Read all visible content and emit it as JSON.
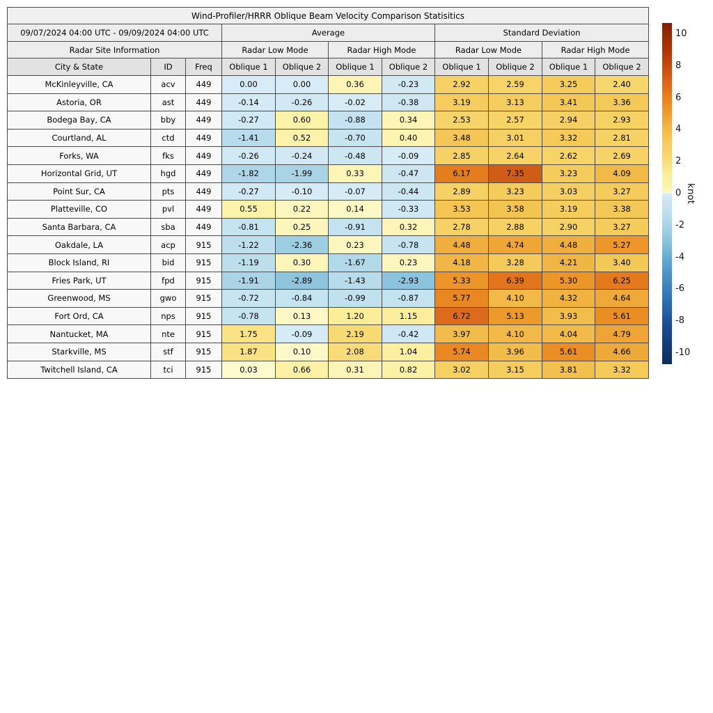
{
  "chart_data": {
    "type": "heatmap-table",
    "title": "Wind-Profiler/HRRR Oblique Beam Velocity Comparison Statisitics",
    "date_range": "09/07/2024 04:00 UTC - 09/09/2024 04:00 UTC",
    "groups": {
      "average": "Average",
      "std": "Standard Deviation"
    },
    "site_info_header": "Radar Site Information",
    "mode_headers": [
      "Radar Low Mode",
      "Radar High Mode",
      "Radar Low Mode",
      "Radar High Mode"
    ],
    "columns": {
      "city": "City & State",
      "id": "ID",
      "freq": "Freq"
    },
    "oblique_headers": [
      "Oblique 1",
      "Oblique 2",
      "Oblique 1",
      "Oblique 2",
      "Oblique 1",
      "Oblique 2",
      "Oblique 1",
      "Oblique 2"
    ],
    "rows": [
      {
        "city": "McKinleyville, CA",
        "id": "acv",
        "freq": "449",
        "values": [
          0.0,
          0.0,
          0.36,
          -0.23,
          2.92,
          2.59,
          3.25,
          2.4
        ]
      },
      {
        "city": "Astoria, OR",
        "id": "ast",
        "freq": "449",
        "values": [
          -0.14,
          -0.26,
          -0.02,
          -0.38,
          3.19,
          3.13,
          3.41,
          3.36
        ]
      },
      {
        "city": "Bodega Bay, CA",
        "id": "bby",
        "freq": "449",
        "values": [
          -0.27,
          0.6,
          -0.88,
          0.34,
          2.53,
          2.57,
          2.94,
          2.93
        ]
      },
      {
        "city": "Courtland, AL",
        "id": "ctd",
        "freq": "449",
        "values": [
          -1.41,
          0.52,
          -0.7,
          0.4,
          3.48,
          3.01,
          3.32,
          2.81
        ]
      },
      {
        "city": "Forks, WA",
        "id": "fks",
        "freq": "449",
        "values": [
          -0.26,
          -0.24,
          -0.48,
          -0.09,
          2.85,
          2.64,
          2.62,
          2.69
        ]
      },
      {
        "city": "Horizontal Grid, UT",
        "id": "hgd",
        "freq": "449",
        "values": [
          -1.82,
          -1.99,
          0.33,
          -0.47,
          6.17,
          7.35,
          3.23,
          4.09
        ]
      },
      {
        "city": "Point Sur, CA",
        "id": "pts",
        "freq": "449",
        "values": [
          -0.27,
          -0.1,
          -0.07,
          -0.44,
          2.89,
          3.23,
          3.03,
          3.27
        ]
      },
      {
        "city": "Platteville, CO",
        "id": "pvl",
        "freq": "449",
        "values": [
          0.55,
          0.22,
          0.14,
          -0.33,
          3.53,
          3.58,
          3.19,
          3.38
        ]
      },
      {
        "city": "Santa Barbara, CA",
        "id": "sba",
        "freq": "449",
        "values": [
          -0.81,
          0.25,
          -0.91,
          0.32,
          2.78,
          2.88,
          2.9,
          3.27
        ]
      },
      {
        "city": "Oakdale, LA",
        "id": "acp",
        "freq": "915",
        "values": [
          -1.22,
          -2.36,
          0.23,
          -0.78,
          4.48,
          4.74,
          4.48,
          5.27
        ]
      },
      {
        "city": "Block Island, RI",
        "id": "bid",
        "freq": "915",
        "values": [
          -1.19,
          0.3,
          -1.67,
          0.23,
          4.18,
          3.28,
          4.21,
          3.4
        ]
      },
      {
        "city": "Fries Park, UT",
        "id": "fpd",
        "freq": "915",
        "values": [
          -1.91,
          -2.89,
          -1.43,
          -2.93,
          5.33,
          6.39,
          5.3,
          6.25
        ]
      },
      {
        "city": "Greenwood, MS",
        "id": "gwo",
        "freq": "915",
        "values": [
          -0.72,
          -0.84,
          -0.99,
          -0.87,
          5.77,
          4.1,
          4.32,
          4.64
        ]
      },
      {
        "city": "Fort Ord, CA",
        "id": "nps",
        "freq": "915",
        "values": [
          -0.78,
          0.13,
          1.2,
          1.15,
          6.72,
          5.13,
          3.93,
          5.61
        ]
      },
      {
        "city": "Nantucket, MA",
        "id": "nte",
        "freq": "915",
        "values": [
          1.75,
          -0.09,
          2.19,
          -0.42,
          3.97,
          4.1,
          4.04,
          4.79
        ]
      },
      {
        "city": "Starkville, MS",
        "id": "stf",
        "freq": "915",
        "values": [
          1.87,
          0.1,
          2.08,
          1.04,
          5.74,
          3.96,
          5.61,
          4.66
        ]
      },
      {
        "city": "Twitchell Island, CA",
        "id": "tci",
        "freq": "915",
        "values": [
          0.03,
          0.66,
          0.31,
          0.82,
          3.02,
          3.15,
          3.81,
          3.32
        ]
      }
    ],
    "colorbar": {
      "label": "knot",
      "unit": "knot",
      "vmin": -10,
      "vmax": 10,
      "edge_max": 10.7,
      "edge_min": -10.7,
      "ticks": [
        10,
        8,
        6,
        4,
        2,
        0,
        -2,
        -4,
        -6,
        -8,
        -10
      ],
      "warm_stops": [
        [
          0,
          "#fdfad0"
        ],
        [
          0.25,
          "#fdf6bc"
        ],
        [
          0.5,
          "#fdf2ab"
        ],
        [
          1,
          "#fdf0a2"
        ],
        [
          1.5,
          "#fbe88f"
        ],
        [
          2,
          "#f9de7c"
        ],
        [
          2.5,
          "#f7d469"
        ],
        [
          3,
          "#f6d063"
        ],
        [
          3.5,
          "#f4c654"
        ],
        [
          4,
          "#f2bb4a"
        ],
        [
          4.5,
          "#f0ad3e"
        ],
        [
          5,
          "#ee9e30"
        ],
        [
          5.5,
          "#eb9026"
        ],
        [
          6,
          "#e8821f"
        ],
        [
          6.5,
          "#e0711b"
        ],
        [
          7,
          "#d8661a"
        ],
        [
          8,
          "#c44a10"
        ],
        [
          9,
          "#ab3507"
        ],
        [
          10,
          "#932b04"
        ],
        [
          10.7,
          "#7c1d03"
        ]
      ],
      "cool_stops": [
        [
          0,
          "#d7ecf6"
        ],
        [
          -0.5,
          "#cce6f2"
        ],
        [
          -1,
          "#c2e1ef"
        ],
        [
          -1.5,
          "#b6dbeb"
        ],
        [
          -2,
          "#a8d4e6"
        ],
        [
          -2.5,
          "#9acce1"
        ],
        [
          -3,
          "#8bc3dc"
        ],
        [
          -4,
          "#68abd0"
        ],
        [
          -5,
          "#4e94c3"
        ],
        [
          -6,
          "#3a7fb8"
        ],
        [
          -7,
          "#2b68aa"
        ],
        [
          -8,
          "#1e5295"
        ],
        [
          -9,
          "#174280"
        ],
        [
          -10,
          "#11366b"
        ],
        [
          -10.7,
          "#0d2c58"
        ]
      ]
    }
  }
}
